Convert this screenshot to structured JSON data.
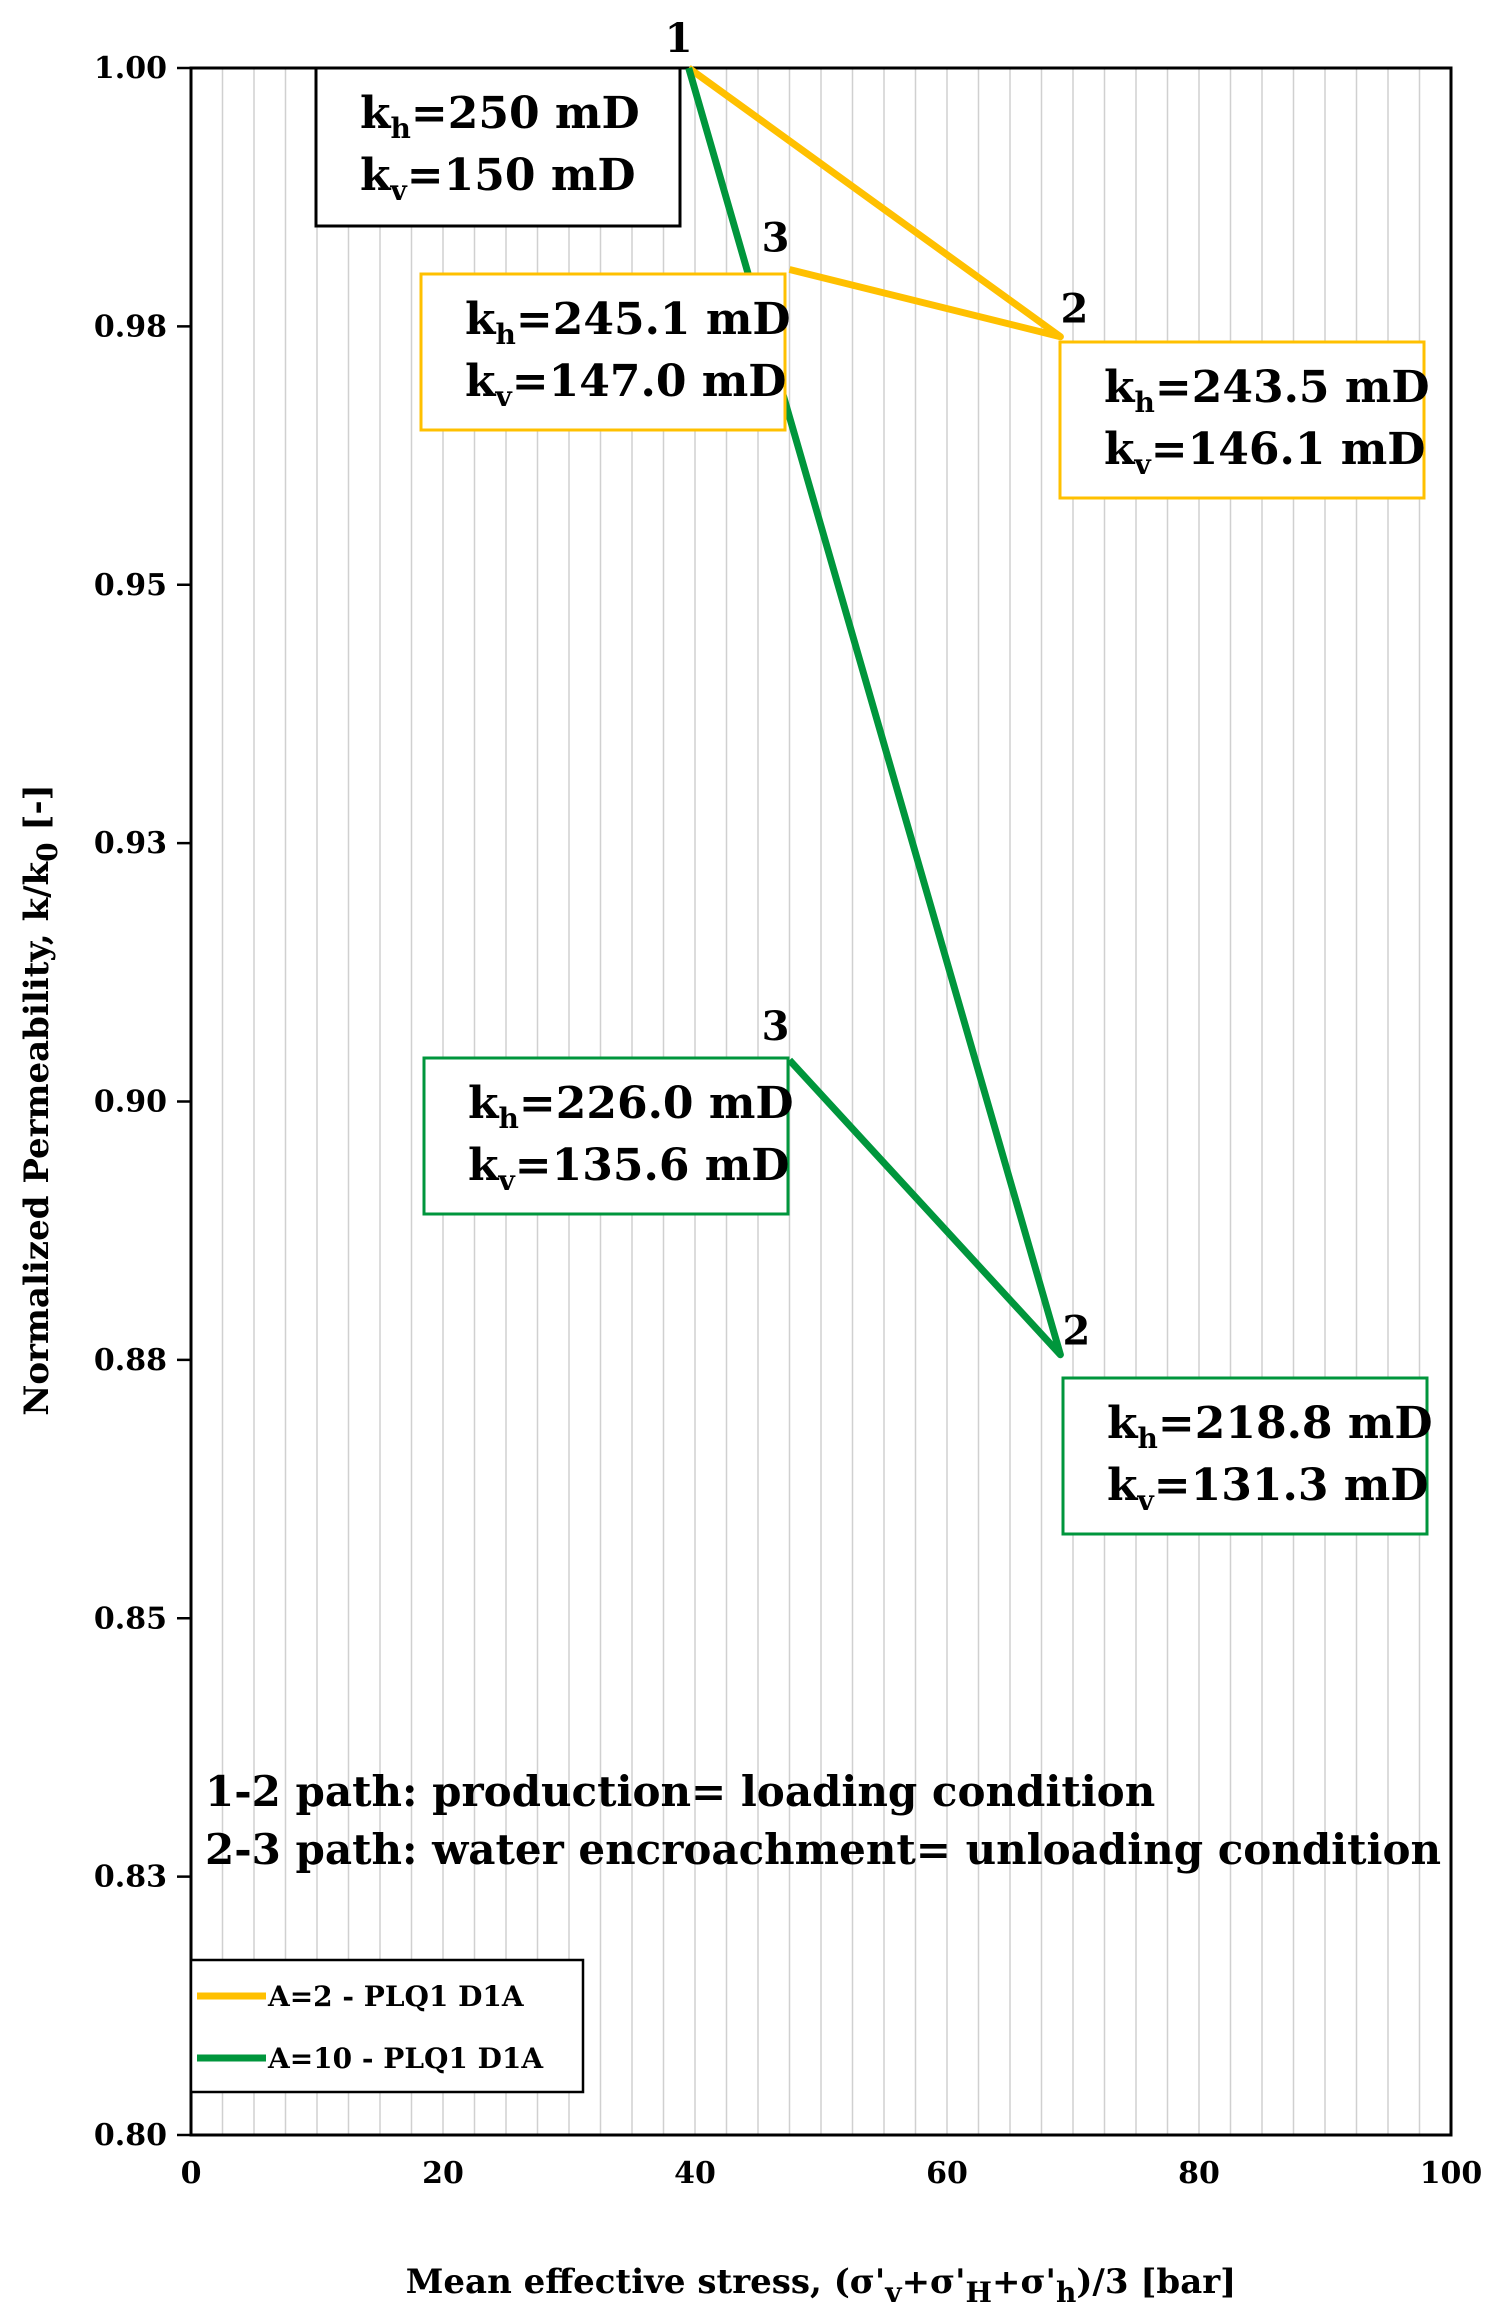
{
  "chart_data": {
    "type": "line",
    "xlabel": "Mean effective stress, (σ'v+σ'H+σ'h)/3 [bar]",
    "ylabel": "Normalized  Permeability, k/k0 [-]",
    "xlim": [
      0,
      100
    ],
    "ylim": [
      0.8,
      1.0
    ],
    "x_ticks": [
      0,
      20,
      40,
      60,
      80,
      100
    ],
    "y_ticks": [
      0.8,
      0.825,
      0.85,
      0.875,
      0.9,
      0.925,
      0.95,
      0.975,
      1.0
    ],
    "y_tick_labels": [
      "0.80",
      "0.83",
      "0.85",
      "0.88",
      "0.90",
      "0.93",
      "0.95",
      "0.98",
      "1.00"
    ],
    "grid": "vertical",
    "legend_position": "bottom-left",
    "series": [
      {
        "name": "A=2 - PLQ1 D1A",
        "color": "#ffc000",
        "x": [
          39.5,
          69,
          47.5
        ],
        "y": [
          1.0,
          0.974,
          0.9805
        ],
        "point_labels": [
          "1",
          "2",
          "3"
        ]
      },
      {
        "name": "A=10 - PLQ1 D1A",
        "color": "#00963c",
        "x": [
          39.5,
          69,
          47.5
        ],
        "y": [
          1.0,
          0.8755,
          0.904
        ],
        "point_labels": [
          "1",
          "2",
          "3"
        ]
      }
    ],
    "annotations": [
      {
        "id": "box-initial",
        "border": "#000000",
        "lines": [
          [
            "k",
            "h",
            "=250 mD"
          ],
          [
            "k",
            "v",
            "=150 mD"
          ]
        ]
      },
      {
        "id": "box-a2-p3",
        "border": "#ffc000",
        "lines": [
          [
            "k",
            "h",
            "=245.1 mD"
          ],
          [
            "k",
            "v",
            "=147.0 mD"
          ]
        ]
      },
      {
        "id": "box-a2-p2",
        "border": "#ffc000",
        "lines": [
          [
            "k",
            "h",
            "=243.5 mD"
          ],
          [
            "k",
            "v",
            "=146.1 mD"
          ]
        ]
      },
      {
        "id": "box-a10-p3",
        "border": "#00963c",
        "lines": [
          [
            "k",
            "h",
            "=226.0 mD"
          ],
          [
            "k",
            "v",
            "=135.6 mD"
          ]
        ]
      },
      {
        "id": "box-a10-p2",
        "border": "#00963c",
        "lines": [
          [
            "k",
            "h",
            "=218.8 mD"
          ],
          [
            "k",
            "v",
            "=131.3 mD"
          ]
        ]
      }
    ],
    "notes": [
      "1-2 path: production= loading condition",
      "2-3 path: water encroachment= unloading condition"
    ]
  }
}
